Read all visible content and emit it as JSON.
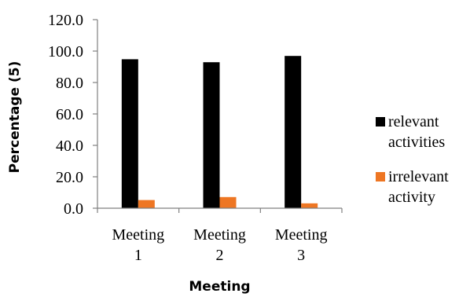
{
  "chart_data": {
    "type": "bar",
    "xlabel": "Meeting",
    "ylabel": "Percentage (5)",
    "ylim": [
      0,
      120
    ],
    "yticks": [
      "0.0",
      "20.0",
      "40.0",
      "60.0",
      "80.0",
      "100.0",
      "120.0"
    ],
    "categories": [
      [
        "Meeting",
        "1"
      ],
      [
        "Meeting",
        "2"
      ],
      [
        "Meeting",
        "3"
      ]
    ],
    "series": [
      {
        "name": [
          "relevant",
          "activities"
        ],
        "values": [
          94.8,
          92.9,
          96.9
        ],
        "color": "#000000"
      },
      {
        "name": [
          "irrelevant",
          "activity"
        ],
        "values": [
          5.2,
          7.1,
          3.1
        ],
        "color": "#ee7623"
      }
    ],
    "legend_position": "right",
    "grid": false
  }
}
